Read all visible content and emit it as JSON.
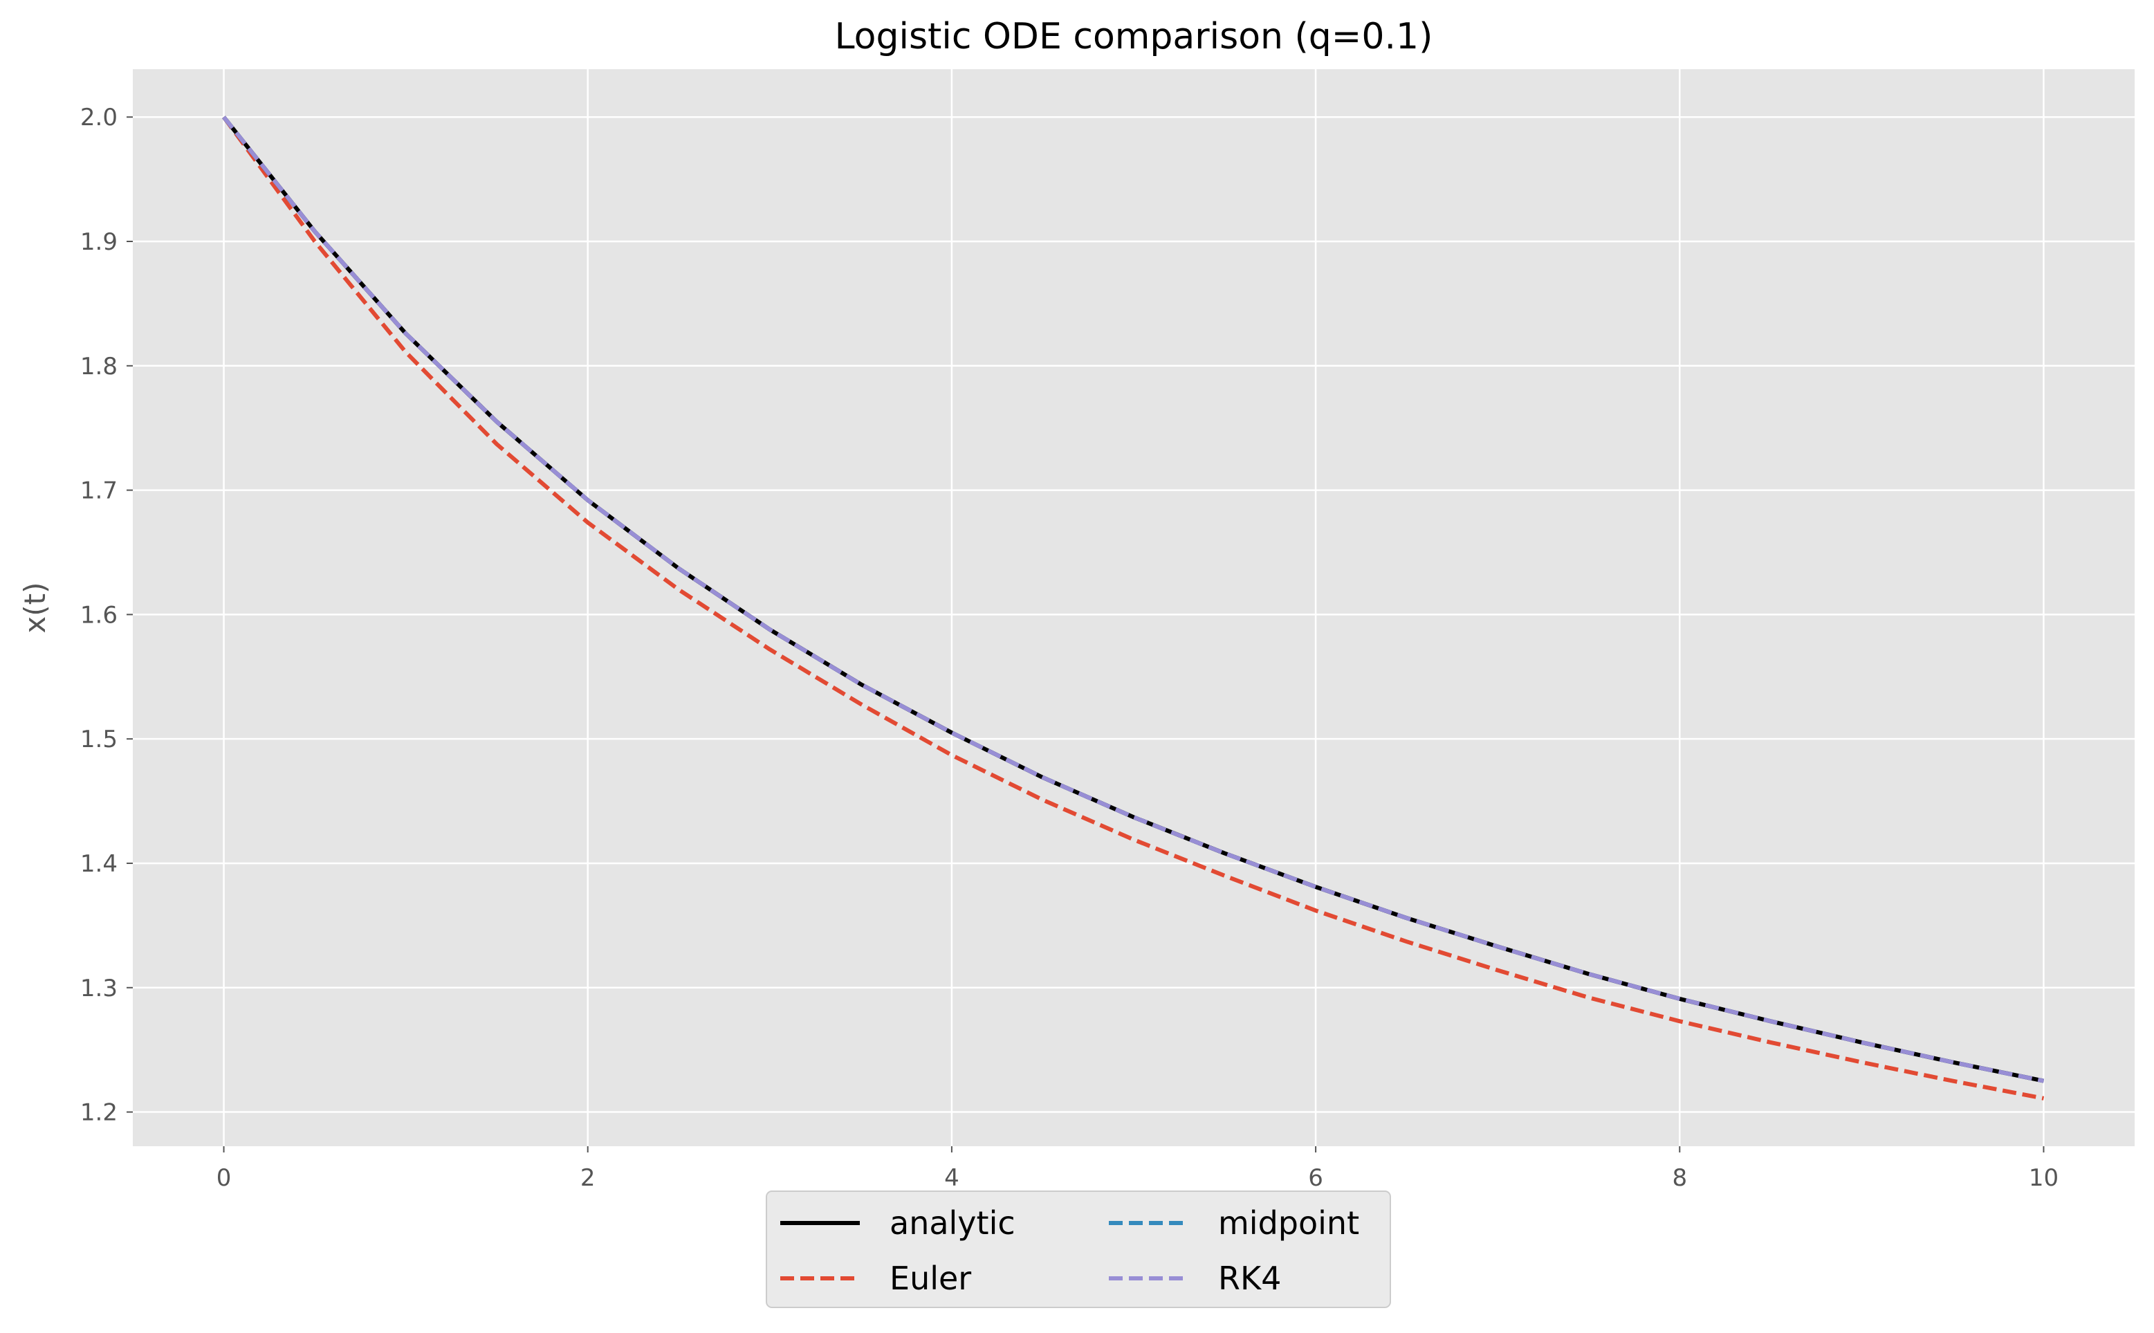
{
  "chart_data": {
    "type": "line",
    "title": "Logistic ODE comparison (q=0.1)",
    "xlabel": "",
    "ylabel": "x(t)",
    "xlim": [
      -0.5,
      10.5
    ],
    "ylim": [
      1.1725,
      2.0385
    ],
    "xticks": [
      0,
      2,
      4,
      6,
      8,
      10
    ],
    "yticks": [
      1.2,
      1.3,
      1.4,
      1.5,
      1.6,
      1.7,
      1.8,
      1.9,
      2.0
    ],
    "xtick_labels": [
      "0",
      "2",
      "4",
      "6",
      "8",
      "10"
    ],
    "ytick_labels": [
      "1.2",
      "1.3",
      "1.4",
      "1.5",
      "1.6",
      "1.7",
      "1.8",
      "1.9",
      "2.0"
    ],
    "grid": true,
    "legend_position": "bottom-center",
    "legend_columns": 2,
    "x": [
      0,
      0.5,
      1,
      1.5,
      2,
      2.5,
      3,
      3.5,
      4,
      4.5,
      5,
      5.5,
      6,
      6.5,
      7,
      7.5,
      8,
      8.5,
      9,
      9.5,
      10
    ],
    "series": [
      {
        "name": "analytic",
        "color": "#000000",
        "style": "solid",
        "values": [
          2.0,
          1.908,
          1.826,
          1.755,
          1.692,
          1.637,
          1.588,
          1.544,
          1.505,
          1.469,
          1.437,
          1.408,
          1.381,
          1.356,
          1.333,
          1.311,
          1.291,
          1.273,
          1.256,
          1.24,
          1.225
        ]
      },
      {
        "name": "Euler",
        "color": "#e24a33",
        "style": "dashed",
        "values": [
          2.0,
          1.9,
          1.811,
          1.737,
          1.674,
          1.62,
          1.572,
          1.528,
          1.487,
          1.451,
          1.419,
          1.39,
          1.362,
          1.337,
          1.314,
          1.292,
          1.273,
          1.256,
          1.24,
          1.225,
          1.211
        ]
      },
      {
        "name": "midpoint",
        "color": "#348abd",
        "style": "dashed",
        "values": [
          2.0,
          1.908,
          1.826,
          1.755,
          1.692,
          1.637,
          1.588,
          1.544,
          1.505,
          1.469,
          1.437,
          1.408,
          1.381,
          1.356,
          1.333,
          1.311,
          1.291,
          1.273,
          1.256,
          1.24,
          1.225
        ]
      },
      {
        "name": "RK4",
        "color": "#988ed5",
        "style": "dashed",
        "values": [
          2.0,
          1.908,
          1.826,
          1.755,
          1.692,
          1.637,
          1.588,
          1.544,
          1.505,
          1.469,
          1.437,
          1.408,
          1.381,
          1.356,
          1.333,
          1.311,
          1.291,
          1.273,
          1.256,
          1.24,
          1.225
        ]
      }
    ],
    "colors": {
      "axes_background": "#e5e5e5",
      "grid": "#ffffff",
      "text": "#555555",
      "title": "#000000"
    }
  }
}
